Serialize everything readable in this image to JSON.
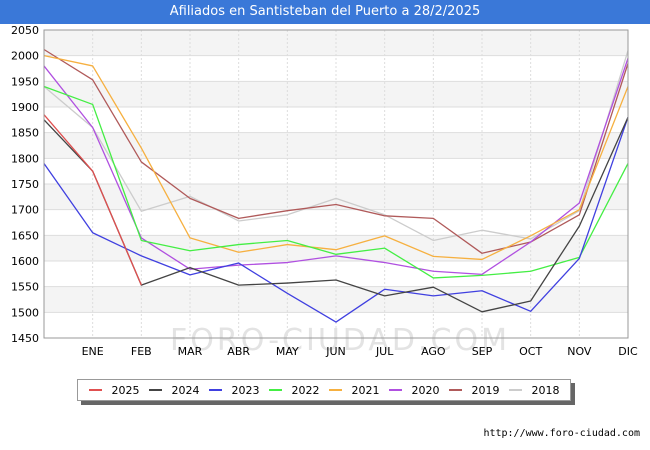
{
  "title": "Afiliados en Santisteban del Puerto a 28/2/2025",
  "watermark": "FORO-CIUDAD.COM",
  "footer": "http://www.foro-ciudad.com",
  "chart_data": {
    "type": "line",
    "categories": [
      "",
      "ENE",
      "FEB",
      "MAR",
      "ABR",
      "MAY",
      "JUN",
      "JUL",
      "AGO",
      "SEP",
      "OCT",
      "NOV",
      "DIC"
    ],
    "ylim": [
      1450,
      2050
    ],
    "yticks": [
      1450,
      1500,
      1550,
      1600,
      1650,
      1700,
      1750,
      1800,
      1850,
      1900,
      1950,
      2000,
      2050
    ],
    "grid": true,
    "legend_position": "bottom",
    "series": [
      {
        "name": "2025",
        "color": "#e05050",
        "values": [
          1885,
          1775,
          1553,
          null,
          null,
          null,
          null,
          null,
          null,
          null,
          null,
          null,
          null
        ]
      },
      {
        "name": "2024",
        "color": "#444444",
        "values": [
          1875,
          1775,
          1553,
          1587,
          1553,
          1557,
          1563,
          1532,
          1549,
          1501,
          1522,
          1668,
          1880
        ]
      },
      {
        "name": "2023",
        "color": "#4040e0",
        "values": [
          1790,
          1655,
          1610,
          1573,
          1596,
          1537,
          1481,
          1545,
          1532,
          1542,
          1502,
          1605,
          1880
        ]
      },
      {
        "name": "2022",
        "color": "#44ee44",
        "values": [
          1940,
          1905,
          1640,
          1620,
          1632,
          1640,
          1613,
          1625,
          1567,
          1572,
          1580,
          1607,
          1790
        ]
      },
      {
        "name": "2021",
        "color": "#f6b040",
        "values": [
          2000,
          1980,
          1820,
          1645,
          1617,
          1632,
          1622,
          1649,
          1609,
          1603,
          1649,
          1700,
          1940
        ]
      },
      {
        "name": "2020",
        "color": "#b050e0",
        "values": [
          1980,
          1860,
          1645,
          1584,
          1592,
          1597,
          1610,
          1597,
          1580,
          1574,
          1637,
          1713,
          1995
        ]
      },
      {
        "name": "2019",
        "color": "#b05a5a",
        "values": [
          2012,
          1953,
          1793,
          1722,
          1683,
          1698,
          1710,
          1688,
          1683,
          1615,
          1637,
          1690,
          1985
        ]
      },
      {
        "name": "2018",
        "color": "#cccccc",
        "values": [
          1940,
          1860,
          1697,
          1726,
          1678,
          1690,
          1722,
          1690,
          1640,
          1660,
          1643,
          1698,
          2010
        ]
      }
    ]
  }
}
